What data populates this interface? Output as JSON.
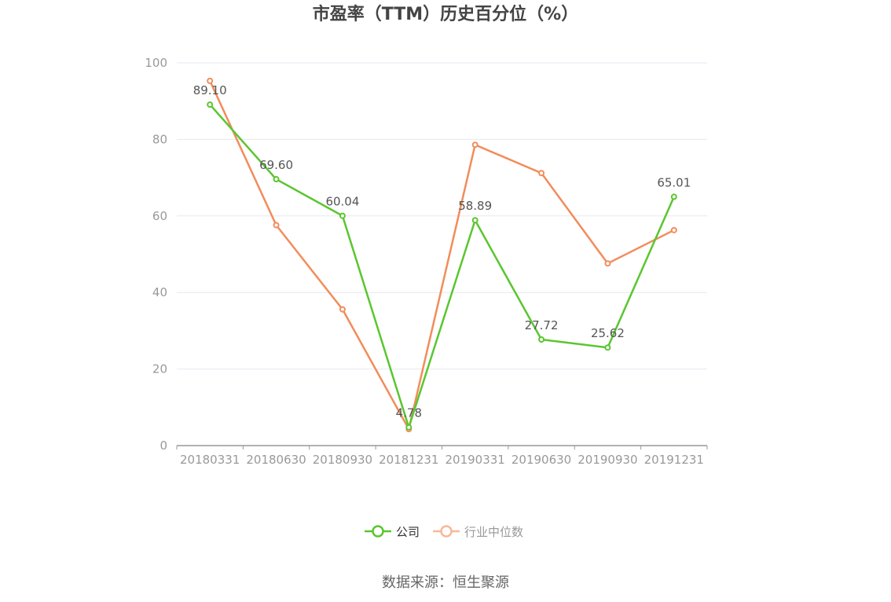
{
  "chart_data": {
    "type": "line",
    "title": "市盈率（TTM）历史百分位（%）",
    "categories": [
      "20180331",
      "20180630",
      "20180930",
      "20181231",
      "20190331",
      "20190630",
      "20190930",
      "20191231"
    ],
    "ylim": [
      0,
      100
    ],
    "yticks": [
      "0",
      "20",
      "40",
      "60",
      "80",
      "100"
    ],
    "grid": true,
    "legend_position": "bottom",
    "series": [
      {
        "name": "公司",
        "color": "#5ac62f",
        "values": [
          89.1,
          69.6,
          60.04,
          4.78,
          58.89,
          27.72,
          25.62,
          65.01
        ],
        "labels": [
          "89.10",
          "69.60",
          "60.04",
          "4.78",
          "58.89",
          "27.72",
          "25.62",
          "65.01"
        ]
      },
      {
        "name": "行业中位数",
        "color": "#f28c5b",
        "legend_color": "#f7b89a",
        "values": [
          95.3,
          57.6,
          35.6,
          4.3,
          78.6,
          71.2,
          47.6,
          56.3
        ]
      }
    ],
    "source": "数据来源：恒生聚源"
  }
}
